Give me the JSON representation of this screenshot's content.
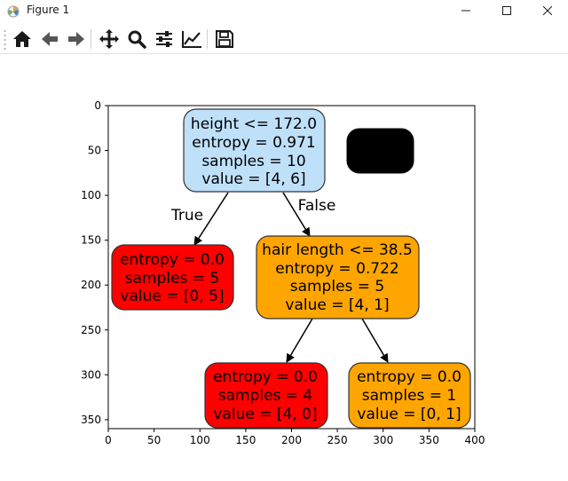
{
  "window": {
    "title": "Figure 1",
    "controls": [
      "minimize",
      "maximize",
      "close"
    ]
  },
  "toolbar": {
    "items": [
      {
        "name": "home-button",
        "icon": "home-icon"
      },
      {
        "name": "back-button",
        "icon": "arrow-left-icon"
      },
      {
        "name": "forward-button",
        "icon": "arrow-right-icon"
      },
      {
        "name": "pan-button",
        "icon": "move-icon"
      },
      {
        "name": "zoom-button",
        "icon": "magnifier-icon"
      },
      {
        "name": "configure-subplots-button",
        "icon": "sliders-icon"
      },
      {
        "name": "edit-axis-button",
        "icon": "line-chart-icon"
      },
      {
        "name": "save-button",
        "icon": "floppy-disk-icon"
      }
    ]
  },
  "colors": {
    "root_fill": "#bfe0f9",
    "leaf_red": "#ff0000",
    "leaf_orange": "#ffa500",
    "legend_box": "#000000",
    "node_border": "#333333"
  },
  "chart_data": {
    "type": "diagram",
    "axes": {
      "xlim": [
        0,
        400
      ],
      "ylim": [
        360,
        0
      ],
      "xticks": [
        "0",
        "50",
        "100",
        "150",
        "200",
        "250",
        "300",
        "350",
        "400"
      ],
      "yticks": [
        "0",
        "50",
        "100",
        "150",
        "200",
        "250",
        "300",
        "350"
      ]
    },
    "nodes": {
      "root": {
        "lines": [
          "height <= 172.0",
          "entropy = 0.971",
          "samples = 10",
          "value = [4, 6]"
        ]
      },
      "left_leaf": {
        "lines": [
          "entropy = 0.0",
          "samples = 5",
          "value = [0, 5]"
        ]
      },
      "right_split": {
        "lines": [
          "hair length <= 38.5",
          "entropy = 0.722",
          "samples = 5",
          "value = [4, 1]"
        ]
      },
      "leaf_ll": {
        "lines": [
          "entropy = 0.0",
          "samples = 4",
          "value = [4, 0]"
        ]
      },
      "leaf_lr": {
        "lines": [
          "entropy = 0.0",
          "samples = 1",
          "value = [0, 1]"
        ]
      }
    },
    "edge_labels": {
      "true_label": "True",
      "false_label": "False"
    }
  }
}
